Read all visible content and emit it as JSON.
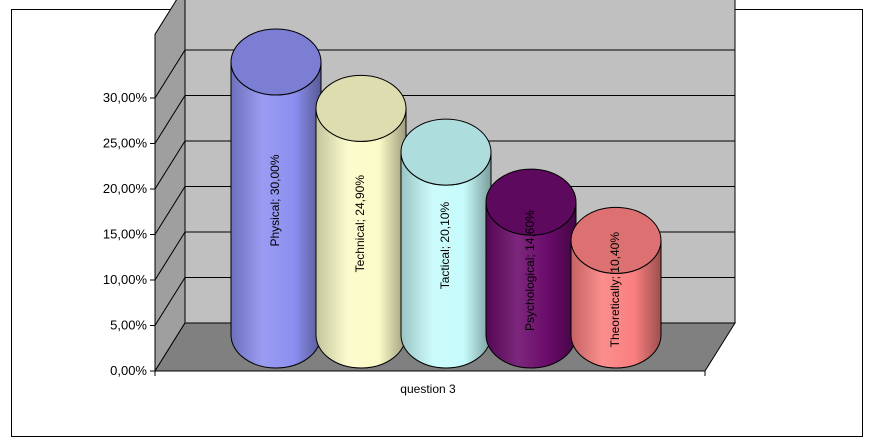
{
  "chart_data": {
    "type": "bar",
    "style": "3d-cylinder",
    "categories": [
      "question 3"
    ],
    "series": [
      {
        "name": "Physical",
        "values": [
          30.0
        ],
        "label": "Physical; 30,00%",
        "color": "#8c8ff0"
      },
      {
        "name": "Technical",
        "values": [
          24.9
        ],
        "label": "Technical; 24,90%",
        "color": "#fbfbc8"
      },
      {
        "name": "Tactical",
        "values": [
          20.1
        ],
        "label": "Tactical; 20,10%",
        "color": "#c6fbfb"
      },
      {
        "name": "Psychological",
        "values": [
          14.6
        ],
        "label": "Psychological; 14,60%",
        "color": "#6a0a6a"
      },
      {
        "name": "Theoretically",
        "values": [
          10.4
        ],
        "label": "Theoretically; 10,40%",
        "color": "#fb7f7f"
      }
    ],
    "y_ticks": [
      "0,00%",
      "5,00%",
      "10,00%",
      "15,00%",
      "20,00%",
      "25,00%",
      "30,00%"
    ],
    "ylim": [
      0,
      30
    ],
    "title": "",
    "xlabel": "",
    "ylabel": "",
    "grid": true,
    "legend": "none",
    "colors": {
      "wall": "#c0c0c0",
      "floor": "#808080",
      "gridline": "#000000"
    }
  }
}
